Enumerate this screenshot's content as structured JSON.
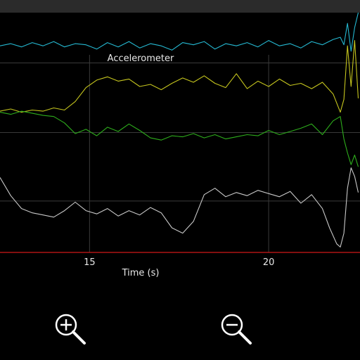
{
  "chart_data": {
    "type": "line",
    "title": "Accelerometer",
    "xlabel": "Time (s)",
    "ylabel": "",
    "xlim": [
      12.5,
      22.55
    ],
    "ylim": [
      -11.2,
      11.2
    ],
    "x_ticks": [
      15,
      20
    ],
    "x_tick_labels": [
      "15",
      "20"
    ],
    "x_gridlines": [
      15,
      20
    ],
    "y_gridlines": [
      6.5,
      0,
      -6.4
    ],
    "baseline": {
      "y": -11.2,
      "color": "#d01818"
    },
    "grid": true,
    "legend": "none",
    "series": [
      {
        "color": "#25b9d2",
        "x": [
          12.5,
          12.8,
          13.1,
          13.4,
          13.7,
          14.0,
          14.3,
          14.6,
          14.9,
          15.2,
          15.5,
          15.8,
          16.1,
          16.4,
          16.7,
          17.0,
          17.3,
          17.6,
          17.9,
          18.2,
          18.5,
          18.8,
          19.1,
          19.4,
          19.7,
          20.0,
          20.3,
          20.6,
          20.9,
          21.2,
          21.5,
          21.8,
          22.0,
          22.1,
          22.2,
          22.3,
          22.4,
          22.5
        ],
        "y": [
          8.1,
          8.3,
          8.0,
          8.4,
          8.1,
          8.5,
          8.0,
          8.3,
          8.2,
          7.8,
          8.4,
          8.0,
          8.5,
          7.9,
          8.3,
          8.1,
          7.7,
          8.4,
          8.2,
          8.5,
          7.8,
          8.3,
          8.1,
          8.4,
          8.0,
          8.6,
          8.1,
          8.3,
          7.9,
          8.5,
          8.2,
          8.7,
          8.9,
          8.2,
          10.2,
          7.6,
          9.8,
          11.2
        ]
      },
      {
        "color": "#c6c61e",
        "x": [
          12.5,
          12.8,
          13.1,
          13.4,
          13.7,
          14.0,
          14.3,
          14.6,
          14.9,
          15.2,
          15.5,
          15.8,
          16.1,
          16.4,
          16.7,
          17.0,
          17.3,
          17.6,
          17.9,
          18.2,
          18.5,
          18.8,
          19.1,
          19.4,
          19.7,
          20.0,
          20.3,
          20.6,
          20.9,
          21.2,
          21.5,
          21.8,
          22.0,
          22.1,
          22.2,
          22.3,
          22.4,
          22.5
        ],
        "y": [
          2.0,
          2.2,
          1.9,
          2.1,
          2.0,
          2.3,
          2.1,
          2.9,
          4.2,
          4.9,
          5.2,
          4.8,
          5.0,
          4.3,
          4.5,
          4.0,
          4.6,
          5.1,
          4.7,
          5.3,
          4.6,
          4.2,
          5.5,
          4.1,
          4.8,
          4.3,
          5.0,
          4.4,
          4.6,
          4.1,
          4.7,
          3.6,
          1.9,
          3.1,
          8.1,
          4.3,
          8.6,
          3.2
        ]
      },
      {
        "color": "#2eae1c",
        "x": [
          12.5,
          12.8,
          13.1,
          13.4,
          13.7,
          14.0,
          14.3,
          14.6,
          14.9,
          15.2,
          15.5,
          15.8,
          16.1,
          16.4,
          16.7,
          17.0,
          17.3,
          17.6,
          17.9,
          18.2,
          18.5,
          18.8,
          19.1,
          19.4,
          19.7,
          20.0,
          20.3,
          20.6,
          20.9,
          21.2,
          21.5,
          21.8,
          22.0,
          22.1,
          22.2,
          22.3,
          22.4,
          22.5
        ],
        "y": [
          1.9,
          1.7,
          2.0,
          1.8,
          1.6,
          1.5,
          0.9,
          -0.1,
          0.3,
          -0.3,
          0.5,
          0.1,
          0.8,
          0.2,
          -0.5,
          -0.7,
          -0.3,
          -0.4,
          -0.1,
          -0.5,
          -0.2,
          -0.6,
          -0.4,
          -0.2,
          -0.3,
          0.2,
          -0.2,
          0.1,
          0.4,
          0.8,
          -0.2,
          1.1,
          1.5,
          -0.6,
          -1.9,
          -3.0,
          -2.1,
          -3.2
        ]
      },
      {
        "color": "#c8c8c8",
        "x": [
          12.5,
          12.8,
          13.1,
          13.4,
          13.7,
          14.0,
          14.3,
          14.6,
          14.9,
          15.2,
          15.5,
          15.8,
          16.1,
          16.4,
          16.7,
          17.0,
          17.3,
          17.6,
          17.9,
          18.2,
          18.5,
          18.8,
          19.1,
          19.4,
          19.7,
          20.0,
          20.3,
          20.6,
          20.9,
          21.2,
          21.5,
          21.7,
          21.9,
          22.0,
          22.1,
          22.2,
          22.3,
          22.4,
          22.5
        ],
        "y": [
          -4.2,
          -5.9,
          -7.1,
          -7.5,
          -7.7,
          -7.9,
          -7.3,
          -6.5,
          -7.3,
          -7.6,
          -7.1,
          -7.8,
          -7.3,
          -7.7,
          -7.0,
          -7.5,
          -8.9,
          -9.4,
          -8.3,
          -5.8,
          -5.2,
          -6.0,
          -5.6,
          -5.9,
          -5.4,
          -5.7,
          -6.0,
          -5.5,
          -6.6,
          -5.8,
          -7.1,
          -8.9,
          -10.4,
          -10.7,
          -9.4,
          -5.2,
          -3.3,
          -4.1,
          -5.6
        ]
      }
    ]
  },
  "controls": {
    "zoom_in_icon": "zoom-in-icon",
    "zoom_out_icon": "zoom-out-icon"
  }
}
